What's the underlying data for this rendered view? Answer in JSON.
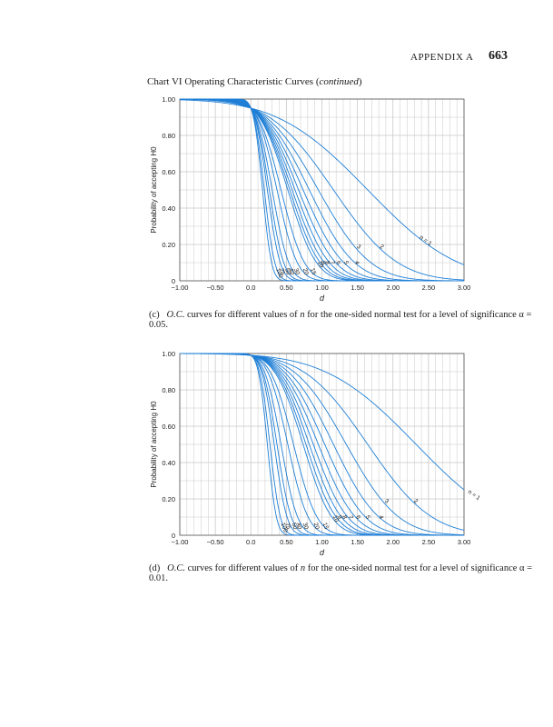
{
  "header": {
    "appendix": "APPENDIX A",
    "page": "663"
  },
  "title": {
    "main": "Chart VI   Operating Characteristic Curves (",
    "cont": "continued",
    "close": ")"
  },
  "chart_data": [
    {
      "type": "line",
      "panel": "(c)",
      "xlabel": "d",
      "ylabel": "Probability of accepting H0",
      "xlim": [
        -1.0,
        3.0
      ],
      "ylim": [
        0,
        1.0
      ],
      "xticks": [
        "−1.00",
        "−0.50",
        "0.0",
        "0.50",
        "1.00",
        "1.50",
        "2.00",
        "2.50",
        "3.00"
      ],
      "yticks": [
        "0",
        "0.20",
        "0.40",
        "0.60",
        "0.80",
        "1.00"
      ],
      "alpha": 0.05,
      "grid": true,
      "series": [
        {
          "name": "n = 1",
          "n": 1
        },
        {
          "name": "2",
          "n": 2
        },
        {
          "name": "3",
          "n": 3
        },
        {
          "name": "4",
          "n": 4
        },
        {
          "name": "5",
          "n": 5
        },
        {
          "name": "6",
          "n": 6
        },
        {
          "name": "7",
          "n": 7
        },
        {
          "name": "8",
          "n": 8
        },
        {
          "name": "9",
          "n": 9
        },
        {
          "name": "10",
          "n": 10
        },
        {
          "name": "15",
          "n": 15
        },
        {
          "name": "20",
          "n": 20
        },
        {
          "name": "30",
          "n": 30
        },
        {
          "name": "40",
          "n": 40
        },
        {
          "name": "50",
          "n": 50
        },
        {
          "name": "75",
          "n": 75
        },
        {
          "name": "100",
          "n": 100
        }
      ],
      "caption": {
        "panel": "(c)",
        "italic": "O.C.",
        "text": " curves for different values of ",
        "n": "n",
        "text2": " for the one-sided normal test for a level of significance α = 0.05."
      }
    },
    {
      "type": "line",
      "panel": "(d)",
      "xlabel": "d",
      "ylabel": "Probability of accepting H0",
      "xlim": [
        -1.0,
        3.0
      ],
      "ylim": [
        0,
        1.0
      ],
      "xticks": [
        "−1.00",
        "−0.50",
        "0.0",
        "0.50",
        "1.00",
        "1.50",
        "2.00",
        "2.50",
        "3.00"
      ],
      "yticks": [
        "0",
        "0.20",
        "0.40",
        "0.60",
        "0.80",
        "1.00"
      ],
      "alpha": 0.01,
      "grid": true,
      "series": [
        {
          "name": "n = 1",
          "n": 1
        },
        {
          "name": "2",
          "n": 2
        },
        {
          "name": "3",
          "n": 3
        },
        {
          "name": "4",
          "n": 4
        },
        {
          "name": "5",
          "n": 5
        },
        {
          "name": "6",
          "n": 6
        },
        {
          "name": "7",
          "n": 7
        },
        {
          "name": "8",
          "n": 8
        },
        {
          "name": "9",
          "n": 9
        },
        {
          "name": "10",
          "n": 10
        },
        {
          "name": "15",
          "n": 15
        },
        {
          "name": "20",
          "n": 20
        },
        {
          "name": "30",
          "n": 30
        },
        {
          "name": "40",
          "n": 40
        },
        {
          "name": "50",
          "n": 50
        },
        {
          "name": "75",
          "n": 75
        },
        {
          "name": "100",
          "n": 100
        }
      ],
      "caption": {
        "panel": "(d)",
        "italic": "O.C.",
        "text": " curves for different values of ",
        "n": "n",
        "text2": " for the one-sided normal test for a level of significance α = 0.01."
      }
    }
  ],
  "colors": {
    "curve": "#1f7fd6",
    "grid": "#c8c8c8",
    "axis": "#555555",
    "text": "#1a1a1a"
  }
}
